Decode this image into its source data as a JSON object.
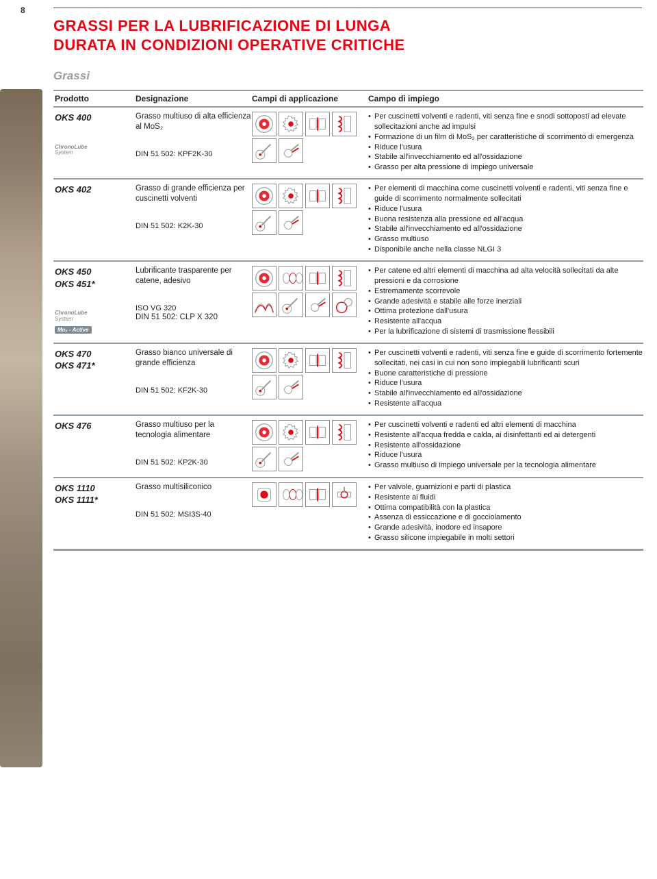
{
  "pagenum": "8",
  "title_line1": "GRASSI PER LA LUBRIFICAZIONE DI LUNGA",
  "title_line2": "DURATA IN CONDIZIONI OPERATIVE CRITICHE",
  "category": "Grassi",
  "headers": {
    "prodotto": "Prodotto",
    "designazione": "Designazione",
    "applicazione": "Campi di applicazione",
    "impiego": "Campo di impiego"
  },
  "rows": [
    {
      "codes": [
        "OKS 400"
      ],
      "badge": {
        "chrono": "ChronoLube",
        "system": "System",
        "mox": false
      },
      "desig": "Grasso multiuso di alta efficienza al MoS₂",
      "din": [
        "DIN 51 502: KPF2K-30"
      ],
      "icons": [
        "bearing",
        "gear",
        "hinge",
        "spring",
        "pin",
        "joint"
      ],
      "impiego": [
        "Per cuscinetti volventi e radenti, viti senza fine e snodi sottoposti ad elevate sollecitazioni anche ad impulsi",
        "Formazione di un film di MoS₂ per caratteristiche di scorrimento di emergenza",
        "Riduce l'usura",
        "Stabile all'invecchiamento ed all'ossidazione",
        "Grasso per alta pressione di impiego universale"
      ]
    },
    {
      "codes": [
        "OKS 402"
      ],
      "badge": null,
      "desig": "Grasso di grande efficienza per cuscinetti volventi",
      "din": [
        "DIN 51 502: K2K-30"
      ],
      "icons": [
        "bearing",
        "gear",
        "hinge",
        "spring",
        "pin",
        "joint"
      ],
      "impiego": [
        "Per elementi di macchina come cuscinetti volventi e radenti, viti senza fine e guide di scorrimento normalmente sollecitati",
        "Riduce l'usura",
        "Buona resistenza alla pressione ed all'acqua",
        "Stabile all'invecchiamento ed all'ossidazione",
        "Grasso multiuso",
        "Disponibile anche nella classe NLGI 3"
      ]
    },
    {
      "codes": [
        "OKS 450",
        "OKS 451*"
      ],
      "badge": {
        "chrono": "ChronoLube",
        "system": "System",
        "mox": true,
        "mox_label": "Moₓ - Active"
      },
      "desig": "Lubrificante trasparente per catene, adesivo",
      "din": [
        "ISO VG 320",
        "DIN 51 502: CLP X 320"
      ],
      "icons": [
        "bearing",
        "chain",
        "hinge",
        "spring",
        "wire",
        "pin",
        "joint",
        "gear2"
      ],
      "impiego": [
        "Per catene ed altri elementi di macchina ad alta velocità sollecitati da alte pressioni e da corrosione",
        "Estremamente scorrevole",
        "Grande adesività e stabile alle forze inerziali",
        "Ottima protezione dall'usura",
        "Resistente all'acqua",
        "Per la lubrificazione di sistemi di trasmissione flessibili"
      ]
    },
    {
      "codes": [
        "OKS 470",
        "OKS 471*"
      ],
      "badge": null,
      "desig": "Grasso bianco universale di grande efficienza",
      "din": [
        "DIN 51 502: KF2K-30"
      ],
      "icons": [
        "bearing",
        "gear",
        "hinge",
        "spring",
        "pin",
        "joint"
      ],
      "impiego": [
        "Per cuscinetti volventi e radenti, viti senza fine e guide di scorrimento fortemente sollecitati, nei casi in cui non sono impiegabili lubrificanti scuri",
        "Buone caratteristiche di pressione",
        "Riduce l'usura",
        "Stabile all'invecchiamento ed all'ossidazione",
        "Resistente all'acqua"
      ]
    },
    {
      "codes": [
        "OKS 476"
      ],
      "badge": null,
      "desig": "Grasso multiuso per la tecnologia alimentare",
      "din": [
        "DIN 51 502: KP2K-30"
      ],
      "icons": [
        "bearing",
        "gear",
        "hinge",
        "spring",
        "pin",
        "joint"
      ],
      "impiego": [
        "Per cuscinetti volventi e radenti ed altri elementi di macchina",
        "Resistente all'acqua fredda e calda, ai disinfettanti ed ai detergenti",
        "Resistente all'ossidazione",
        "Riduce l'usura",
        "Grasso multiuso di impiego universale per la tecnologia alimentare"
      ]
    },
    {
      "codes": [
        "OKS 1110",
        "OKS 1111*"
      ],
      "badge": null,
      "desig": "Grasso multisiliconico",
      "din": [
        "DIN 51 502: MSI3S-40"
      ],
      "icons": [
        "seal",
        "chain",
        "hinge",
        "valve"
      ],
      "impiego": [
        "Per valvole, guarnizioni e parti di plastica",
        "Resistente ai fluidi",
        "Ottima compatibilità con la plastica",
        "Assenza di essiccazione e di gocciolamento",
        "Grande adesività, inodore ed insapore",
        "Grasso silicone impiegabile in molti settori"
      ]
    }
  ]
}
